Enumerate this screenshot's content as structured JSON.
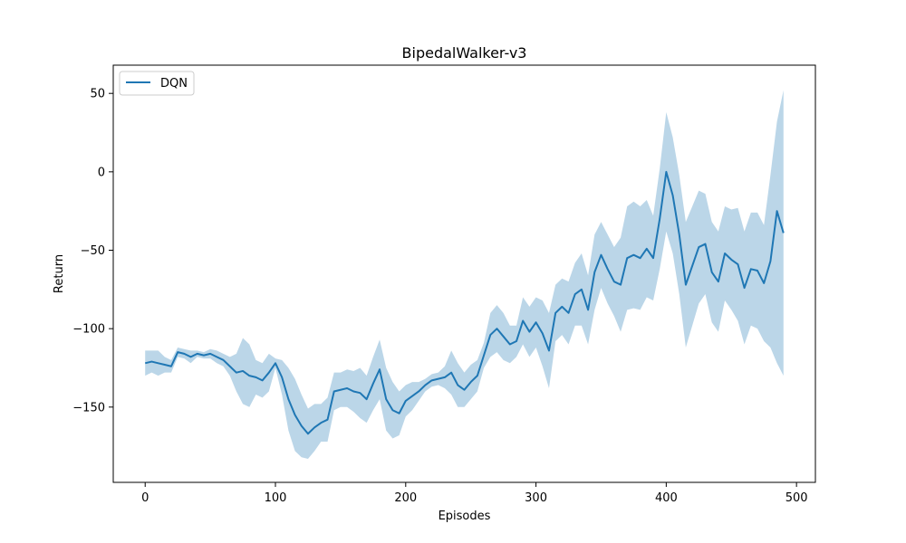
{
  "chart_data": {
    "type": "line",
    "title": "BipedalWalker-v3",
    "xlabel": "Episodes",
    "ylabel": "Return",
    "xlim": [
      -24.5,
      514.5
    ],
    "ylim": [
      -198,
      68
    ],
    "xticks": [
      0,
      100,
      200,
      300,
      400,
      500
    ],
    "yticks": [
      -150,
      -100,
      -50,
      0,
      50
    ],
    "xtick_labels": [
      "0",
      "100",
      "200",
      "300",
      "400",
      "500"
    ],
    "ytick_labels": [
      "−150",
      "−100",
      "−50",
      "0",
      "50"
    ],
    "legend": {
      "position": "top-left",
      "entries": [
        "DQN"
      ]
    },
    "grid": false,
    "series": [
      {
        "name": "DQN",
        "color": "#1f77b4",
        "band_color": "#1f77b4",
        "band_opacity": 0.3,
        "x": [
          0,
          5,
          10,
          15,
          20,
          25,
          30,
          35,
          40,
          45,
          50,
          55,
          60,
          65,
          70,
          75,
          80,
          85,
          90,
          95,
          100,
          105,
          110,
          115,
          120,
          125,
          130,
          135,
          140,
          145,
          150,
          155,
          160,
          165,
          170,
          175,
          180,
          185,
          190,
          195,
          200,
          205,
          210,
          215,
          220,
          225,
          230,
          235,
          240,
          245,
          250,
          255,
          260,
          265,
          270,
          275,
          280,
          285,
          290,
          295,
          300,
          305,
          310,
          315,
          320,
          325,
          330,
          335,
          340,
          345,
          350,
          355,
          360,
          365,
          370,
          375,
          380,
          385,
          390,
          395,
          400,
          405,
          410,
          415,
          420,
          425,
          430,
          435,
          440,
          445,
          450,
          455,
          460,
          465,
          470,
          475,
          480,
          485,
          490
        ],
        "mean": [
          -122,
          -121,
          -122,
          -123,
          -124,
          -115,
          -116,
          -118,
          -116,
          -117,
          -116,
          -118,
          -120,
          -124,
          -128,
          -127,
          -130,
          -131,
          -133,
          -128,
          -122,
          -131,
          -145,
          -155,
          -162,
          -167,
          -163,
          -160,
          -158,
          -140,
          -139,
          -138,
          -140,
          -141,
          -145,
          -135,
          -126,
          -145,
          -152,
          -154,
          -146,
          -143,
          -140,
          -136,
          -133,
          -132,
          -131,
          -128,
          -136,
          -139,
          -134,
          -130,
          -117,
          -104,
          -100,
          -105,
          -110,
          -108,
          -95,
          -102,
          -96,
          -103,
          -114,
          -90,
          -86,
          -90,
          -78,
          -75,
          -88,
          -64,
          -53,
          -62,
          -70,
          -72,
          -55,
          -53,
          -55,
          -49,
          -55,
          -30,
          0,
          -15,
          -40,
          -72,
          -60,
          -48,
          -46,
          -64,
          -70,
          -52,
          -56,
          -59,
          -74,
          -62,
          -63,
          -71,
          -57,
          -25,
          -39
        ],
        "lower": [
          -130,
          -128,
          -130,
          -128,
          -128,
          -118,
          -119,
          -122,
          -118,
          -119,
          -119,
          -122,
          -124,
          -130,
          -140,
          -148,
          -150,
          -142,
          -144,
          -140,
          -125,
          -142,
          -165,
          -178,
          -182,
          -183,
          -178,
          -172,
          -172,
          -152,
          -150,
          -150,
          -153,
          -157,
          -160,
          -152,
          -145,
          -165,
          -170,
          -168,
          -156,
          -152,
          -146,
          -140,
          -137,
          -136,
          -138,
          -142,
          -150,
          -150,
          -145,
          -140,
          -125,
          -118,
          -115,
          -120,
          -122,
          -118,
          -110,
          -118,
          -112,
          -124,
          -138,
          -108,
          -104,
          -110,
          -98,
          -98,
          -110,
          -88,
          -74,
          -84,
          -92,
          -102,
          -88,
          -87,
          -88,
          -80,
          -82,
          -62,
          -38,
          -52,
          -78,
          -112,
          -98,
          -84,
          -78,
          -96,
          -102,
          -82,
          -88,
          -95,
          -110,
          -98,
          -100,
          -108,
          -112,
          -122,
          -130
        ],
        "upper": [
          -114,
          -114,
          -114,
          -118,
          -120,
          -112,
          -113,
          -114,
          -114,
          -115,
          -113,
          -114,
          -116,
          -118,
          -116,
          -106,
          -110,
          -120,
          -122,
          -116,
          -119,
          -120,
          -125,
          -132,
          -142,
          -151,
          -148,
          -148,
          -144,
          -128,
          -128,
          -126,
          -127,
          -125,
          -130,
          -118,
          -107,
          -125,
          -134,
          -140,
          -136,
          -134,
          -134,
          -132,
          -129,
          -128,
          -124,
          -114,
          -122,
          -128,
          -123,
          -120,
          -109,
          -90,
          -85,
          -90,
          -98,
          -98,
          -80,
          -86,
          -80,
          -82,
          -90,
          -72,
          -68,
          -70,
          -58,
          -52,
          -66,
          -40,
          -32,
          -40,
          -48,
          -42,
          -22,
          -19,
          -22,
          -18,
          -28,
          2,
          38,
          22,
          -2,
          -32,
          -22,
          -12,
          -14,
          -32,
          -38,
          -22,
          -24,
          -23,
          -38,
          -26,
          -26,
          -34,
          -2,
          32,
          52
        ]
      }
    ]
  }
}
